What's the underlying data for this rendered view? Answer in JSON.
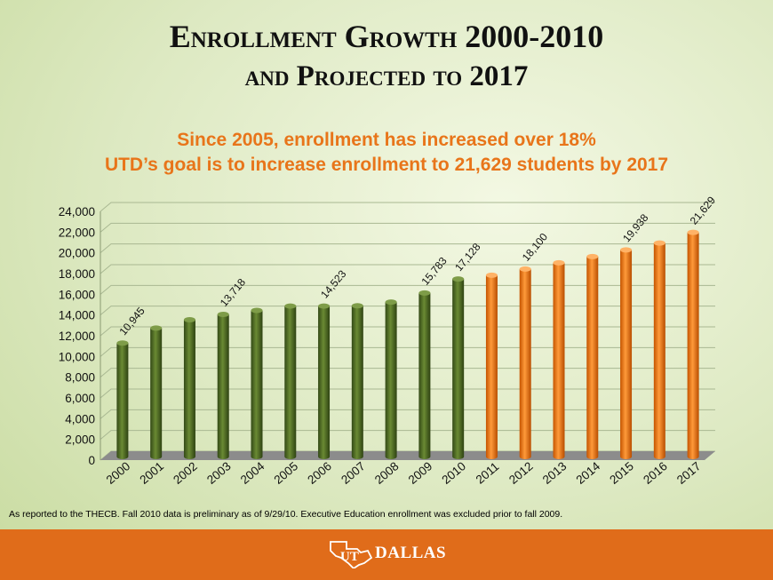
{
  "title_line1": "Enrollment Growth 2000-2010",
  "title_line2": "and Projected to 2017",
  "subtitle_line1": "Since 2005, enrollment has increased over 18%",
  "subtitle_line2": "UTD’s goal is to increase enrollment to 21,629 students by 2017",
  "footnote": "As reported to the THECB.  Fall 2010 data is preliminary as of 9/29/10.  Executive Education enrollment was excluded prior to fall 2009.",
  "logo": {
    "mark": "UT",
    "text": "DALLAS",
    "icon": "texas-star-icon"
  },
  "colors": {
    "actual": "#4f6a23",
    "projected": "#ee7417",
    "footer": "#e06c1a",
    "accent_text": "#e8751a"
  },
  "chart_data": {
    "type": "bar",
    "style": "3d-cylinder",
    "categories": [
      "2000",
      "2001",
      "2002",
      "2003",
      "2004",
      "2005",
      "2006",
      "2007",
      "2008",
      "2009",
      "2010",
      "2011",
      "2012",
      "2013",
      "2014",
      "2015",
      "2016",
      "2017"
    ],
    "values": [
      10945,
      12400,
      13200,
      13718,
      14100,
      14523,
      14523,
      14550,
      14900,
      15783,
      17128,
      17500,
      18100,
      18700,
      19300,
      19938,
      20600,
      21629
    ],
    "series_status": [
      "actual",
      "actual",
      "actual",
      "actual",
      "actual",
      "actual",
      "actual",
      "actual",
      "actual",
      "actual",
      "actual",
      "projected",
      "projected",
      "projected",
      "projected",
      "projected",
      "projected",
      "projected"
    ],
    "data_labels": {
      "0": "10,945",
      "3": "13,718",
      "6": "14,523",
      "9": "15,783",
      "10": "17,128",
      "12": "18,100",
      "15": "19,938",
      "17": "21,629"
    },
    "yticks": [
      "0",
      "2,000",
      "4,000",
      "6,000",
      "8,000",
      "10,000",
      "12,000",
      "14,000",
      "16,000",
      "18,000",
      "20,000",
      "22,000",
      "24,000"
    ],
    "ylim": [
      0,
      24000
    ],
    "grid": true,
    "xlabel": "",
    "ylabel": ""
  }
}
